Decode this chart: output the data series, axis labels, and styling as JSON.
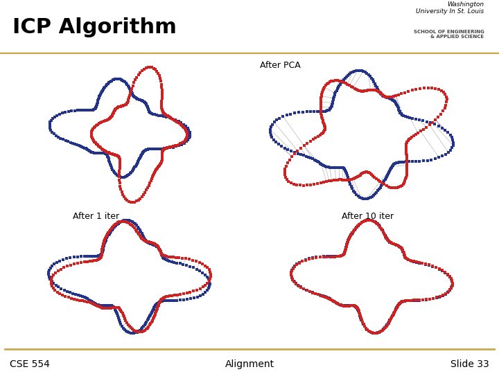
{
  "title": "ICP Algorithm",
  "footer_left": "CSE 554",
  "footer_center": "Alignment",
  "footer_right": "Slide 33",
  "bg_color": "#ffffff",
  "header_line_color": "#c8a84b",
  "footer_line_color": "#c8a84b",
  "title_fontsize": 22,
  "footer_fontsize": 10,
  "label_after_pca": "After PCA",
  "label_after_1": "After 1 iter",
  "label_after_10": "After 10 iter",
  "dot_color_red": "#cc2222",
  "dot_color_blue": "#223388",
  "line_color": "#999999",
  "dot_size": 2.5
}
